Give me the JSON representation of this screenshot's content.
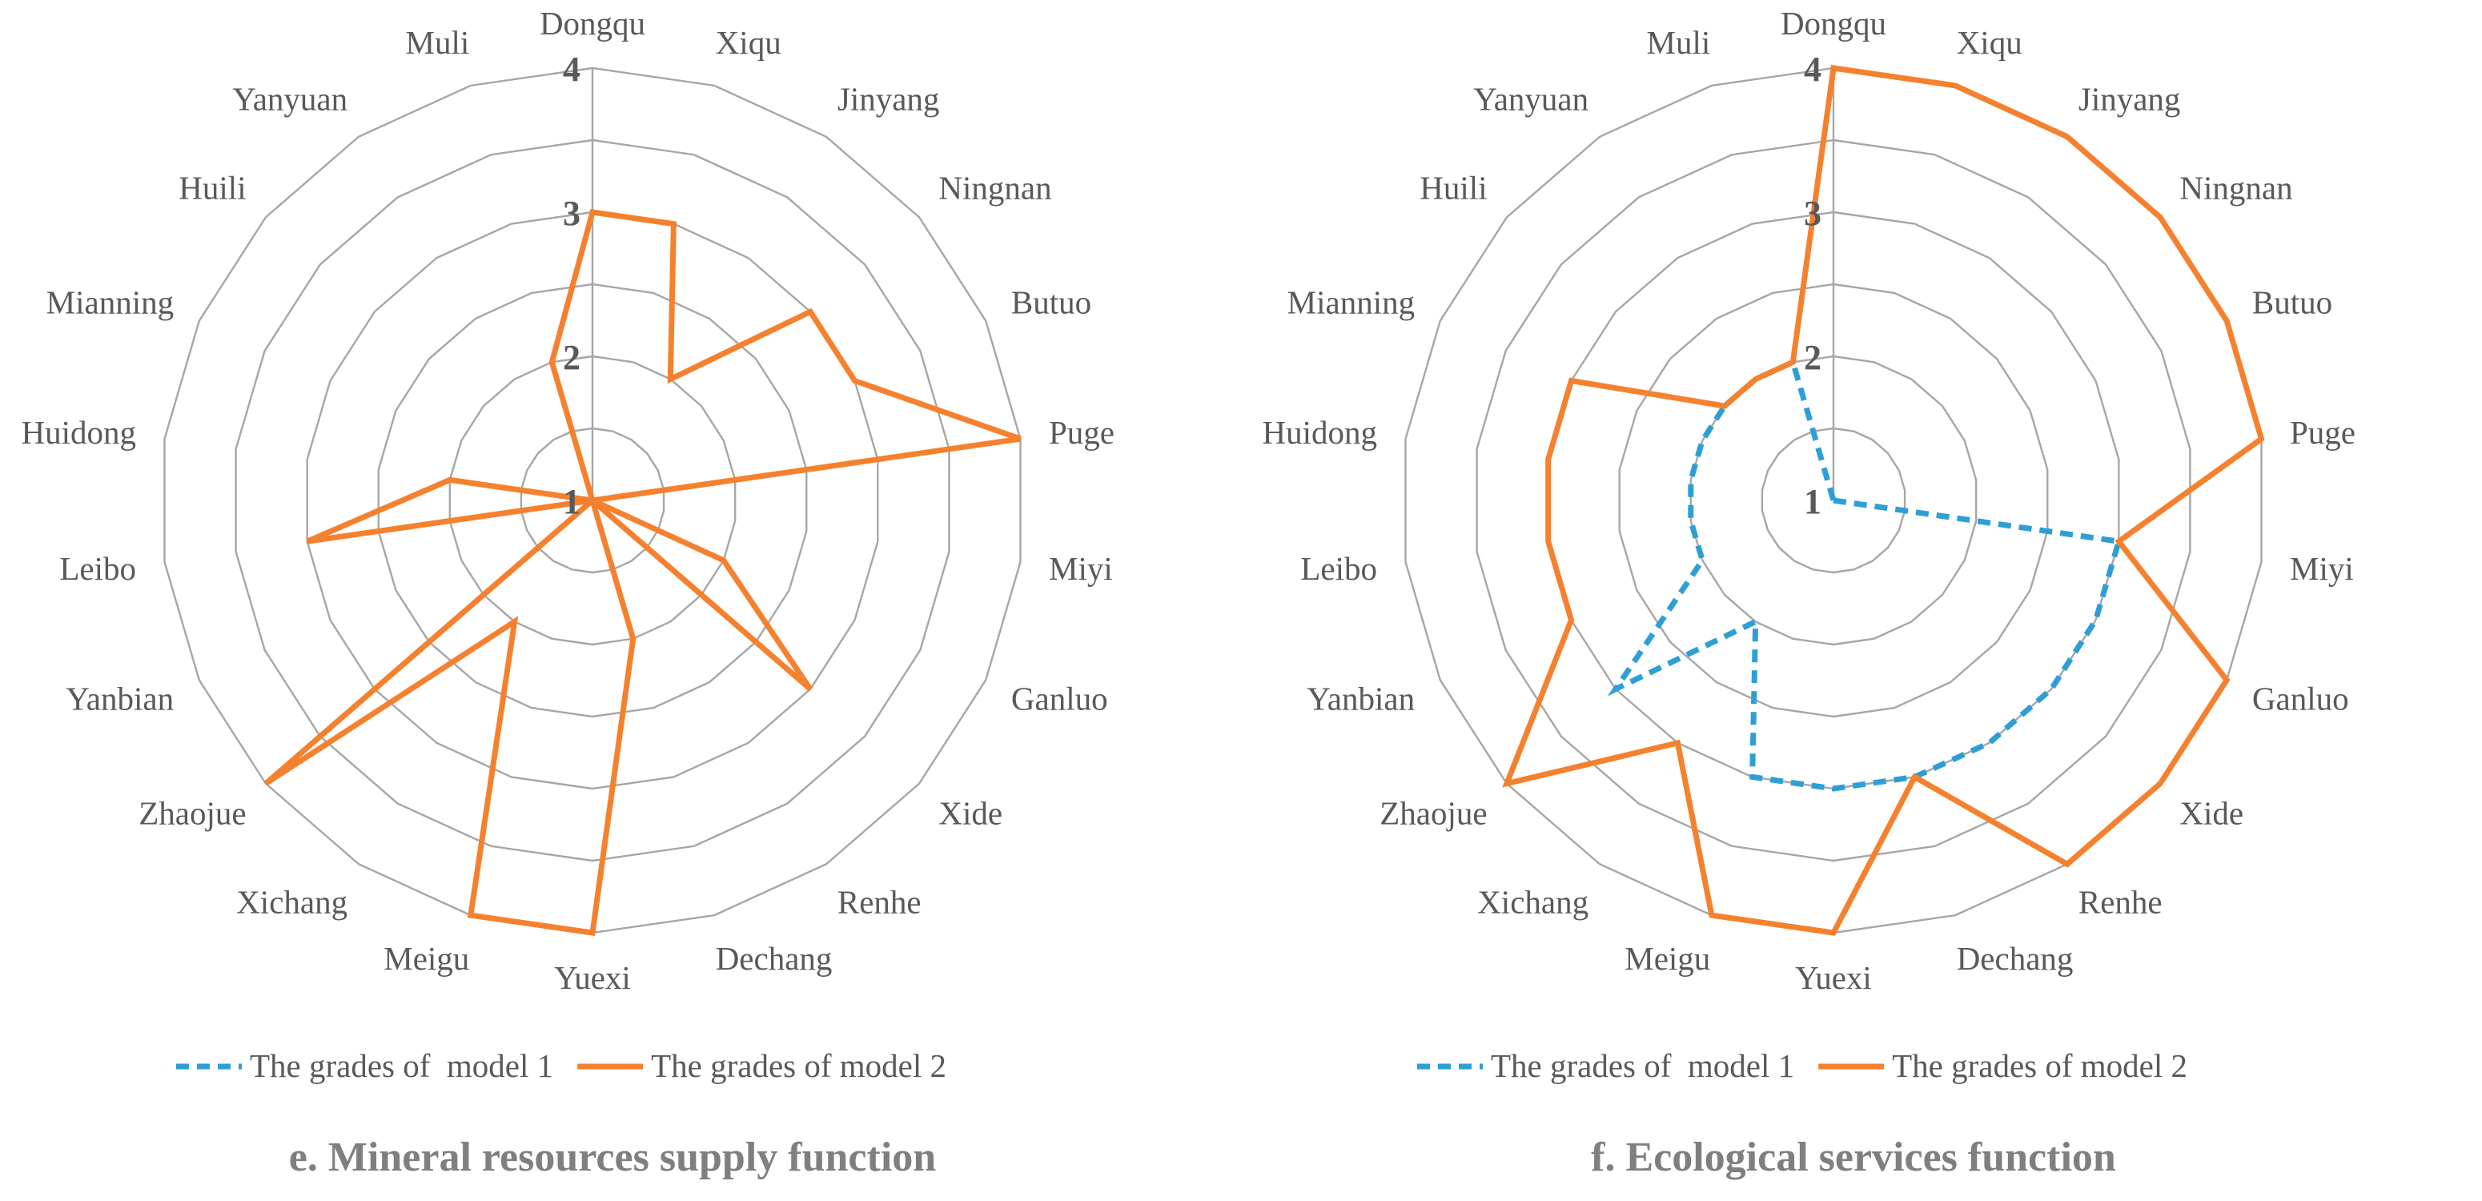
{
  "colors": {
    "grid": "#a6a6a6",
    "model1": "#2e9fd6",
    "model2": "#f5812e",
    "label": "#595959",
    "title": "#7f7f7f"
  },
  "chart_data": [
    {
      "type": "radar",
      "title": "e. Mineral resources supply function",
      "categories": [
        "Dongqu",
        "Xiqu",
        "Jinyang",
        "Ningnan",
        "Butuo",
        "Puge",
        "Miyi",
        "Ganluo",
        "Xide",
        "Renhe",
        "Dechang",
        "Yuexi",
        "Meigu",
        "Xichang",
        "Zhaojue",
        "Yanbian",
        "Leibo",
        "Huidong",
        "Mianning",
        "Huili",
        "Yanyuan",
        "Muli"
      ],
      "rlim": [
        1,
        4
      ],
      "ticks": [
        "1",
        "2",
        "3",
        "4"
      ],
      "legend": [
        "The grades of  model 1",
        "The grades of model 2"
      ],
      "legend_position": "bottom",
      "series": [
        {
          "name": "The grades of  model 1",
          "style": "dashed",
          "values": [
            1,
            1,
            1,
            1,
            1,
            1,
            1,
            1,
            1,
            1,
            1,
            1,
            1,
            1,
            1,
            1,
            1,
            1,
            1,
            1,
            1,
            1
          ]
        },
        {
          "name": "The grades of model 2",
          "style": "solid",
          "values": [
            3,
            3,
            2,
            3,
            3,
            4,
            1,
            2,
            3,
            1,
            2,
            4,
            4,
            2,
            4,
            1,
            3,
            2,
            1,
            1,
            1,
            2
          ]
        }
      ]
    },
    {
      "type": "radar",
      "title": "f. Ecological services function",
      "categories": [
        "Dongqu",
        "Xiqu",
        "Jinyang",
        "Ningnan",
        "Butuo",
        "Puge",
        "Miyi",
        "Ganluo",
        "Xide",
        "Renhe",
        "Dechang",
        "Yuexi",
        "Meigu",
        "Xichang",
        "Zhaojue",
        "Yanbian",
        "Leibo",
        "Huidong",
        "Mianning",
        "Huili",
        "Yanyuan",
        "Muli"
      ],
      "rlim": [
        1,
        4
      ],
      "ticks": [
        "1",
        "2",
        "3",
        "4"
      ],
      "legend": [
        "The grades of  model 1",
        "The grades of model 2"
      ],
      "legend_position": "bottom",
      "series": [
        {
          "name": "The grades of  model 1",
          "style": "dashed",
          "values": [
            1,
            1,
            1,
            1,
            1,
            1,
            3,
            3,
            3,
            3,
            3,
            3,
            3,
            2,
            3,
            2,
            2,
            2,
            2,
            2,
            2,
            2
          ]
        },
        {
          "name": "The grades of model 2",
          "style": "solid",
          "values": [
            4,
            4,
            4,
            4,
            4,
            4,
            3,
            4,
            4,
            4,
            3,
            4,
            4,
            3,
            4,
            3,
            3,
            3,
            3,
            2,
            2,
            2
          ]
        }
      ]
    }
  ]
}
